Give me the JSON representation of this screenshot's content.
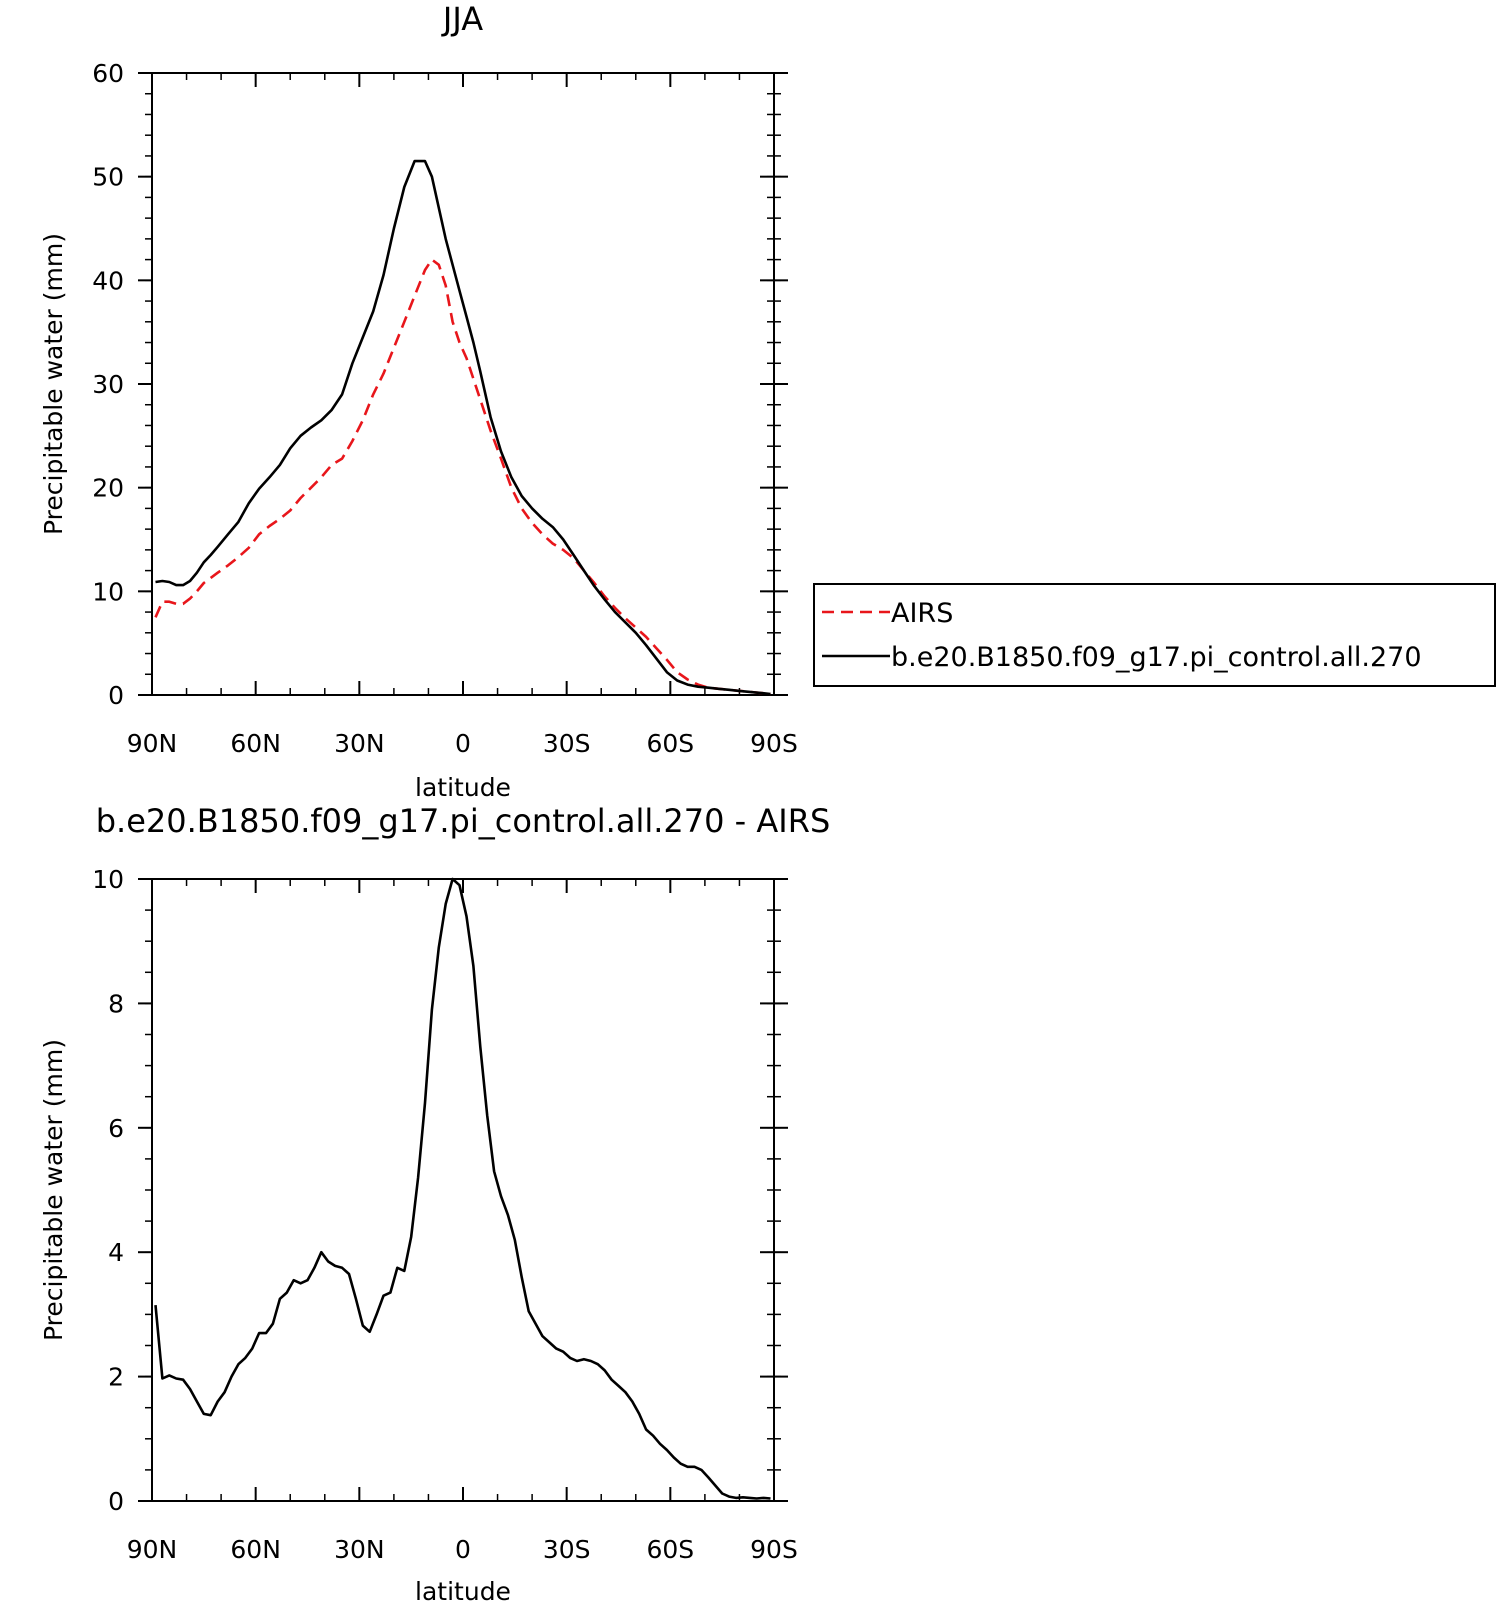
{
  "chart_data": [
    {
      "type": "line",
      "title": "JJA",
      "xlabel": "latitude",
      "ylabel": "Precipitable water (mm)",
      "xlim": [
        90,
        -90
      ],
      "ylim": [
        0,
        60
      ],
      "x_ticks": [
        90,
        60,
        30,
        0,
        -30,
        -60,
        -90
      ],
      "x_tick_labels": [
        "90N",
        "60N",
        "30N",
        "0",
        "30S",
        "60S",
        "90S"
      ],
      "y_ticks": [
        0,
        10,
        20,
        30,
        40,
        50,
        60
      ],
      "y_tick_labels": [
        "0",
        "10",
        "20",
        "30",
        "40",
        "50",
        "60"
      ],
      "grid": false,
      "legend_position": "right",
      "series": [
        {
          "name": "AIRS",
          "color": "#e8161b",
          "dash": "dashed",
          "x": [
            89,
            87,
            85,
            83,
            81,
            79,
            77,
            75,
            73,
            71,
            68,
            65,
            62,
            59,
            56,
            53,
            50,
            47,
            44,
            41,
            38,
            35,
            32,
            29,
            26,
            23,
            20,
            17,
            14,
            11,
            9,
            7,
            5,
            3,
            1,
            -1,
            -3,
            -5,
            -8,
            -11,
            -14,
            -17,
            -20,
            -23,
            -26,
            -29,
            -32,
            -35,
            -38,
            -41,
            -44,
            -47,
            -50,
            -53,
            -56,
            -59,
            -62,
            -65,
            -68,
            -71,
            -74,
            -77,
            -80,
            -83,
            -86,
            -89
          ],
          "y": [
            7.5,
            9.0,
            9.0,
            8.8,
            8.8,
            9.3,
            10.0,
            10.8,
            11.3,
            11.8,
            12.5,
            13.3,
            14.2,
            15.5,
            16.3,
            17.0,
            17.8,
            19.0,
            20.0,
            21.0,
            22.2,
            22.8,
            24.5,
            26.5,
            29.0,
            31.0,
            33.5,
            36.0,
            38.5,
            41.0,
            42.0,
            41.5,
            39.5,
            36.0,
            34.0,
            32.5,
            30.5,
            28.5,
            25.5,
            22.8,
            20.0,
            18.0,
            16.6,
            15.5,
            14.6,
            14.0,
            13.2,
            12.0,
            10.8,
            9.5,
            8.4,
            7.4,
            6.5,
            5.6,
            4.5,
            3.4,
            2.2,
            1.5,
            1.0,
            0.7,
            0.6,
            0.5,
            0.4,
            0.3,
            0.2,
            0.1
          ]
        },
        {
          "name": "b.e20.B1850.f09_g17.pi_control.all.270",
          "color": "#000000",
          "dash": "solid",
          "x": [
            89,
            87,
            85,
            83,
            81,
            79,
            77,
            75,
            73,
            71,
            68,
            65,
            62,
            59,
            56,
            53,
            50,
            47,
            44,
            41,
            38,
            35,
            32,
            29,
            26,
            23,
            20,
            17,
            14,
            11,
            9,
            7,
            5,
            3,
            1,
            -1,
            -3,
            -5,
            -8,
            -11,
            -14,
            -17,
            -20,
            -23,
            -26,
            -29,
            -32,
            -35,
            -38,
            -41,
            -44,
            -47,
            -50,
            -53,
            -56,
            -59,
            -62,
            -65,
            -68,
            -71,
            -74,
            -77,
            -80,
            -83,
            -86,
            -89
          ],
          "y": [
            10.9,
            11.0,
            10.9,
            10.6,
            10.6,
            11.0,
            11.8,
            12.8,
            13.5,
            14.3,
            15.5,
            16.7,
            18.5,
            19.9,
            21.0,
            22.2,
            23.8,
            25.0,
            25.8,
            26.5,
            27.5,
            29.0,
            32.0,
            34.5,
            37.0,
            40.5,
            45.0,
            49.0,
            51.5,
            51.5,
            50.0,
            47.0,
            44.0,
            41.5,
            39.0,
            36.5,
            34.0,
            31.2,
            26.8,
            23.5,
            21.0,
            19.2,
            18.0,
            17.0,
            16.2,
            15.0,
            13.5,
            12.0,
            10.5,
            9.2,
            8.0,
            7.0,
            6.0,
            4.8,
            3.5,
            2.2,
            1.4,
            1.0,
            0.8,
            0.7,
            0.6,
            0.5,
            0.4,
            0.3,
            0.2,
            0.1
          ]
        }
      ]
    },
    {
      "type": "line",
      "title": "b.e20.B1850.f09_g17.pi_control.all.270 - AIRS",
      "xlabel": "latitude",
      "ylabel": "Precipitable water (mm)",
      "xlim": [
        90,
        -90
      ],
      "ylim": [
        0,
        10
      ],
      "x_ticks": [
        90,
        60,
        30,
        0,
        -30,
        -60,
        -90
      ],
      "x_tick_labels": [
        "90N",
        "60N",
        "30N",
        "0",
        "30S",
        "60S",
        "90S"
      ],
      "y_ticks": [
        0,
        2,
        4,
        6,
        8,
        10
      ],
      "y_tick_labels": [
        "0",
        "2",
        "4",
        "6",
        "8",
        "10"
      ],
      "grid": false,
      "series": [
        {
          "color": "#000000",
          "dash": "solid",
          "x": [
            89,
            87,
            85,
            83,
            81,
            79,
            77,
            75,
            73,
            71,
            69,
            67,
            65,
            63,
            61,
            59,
            57,
            55,
            53,
            51,
            49,
            47,
            45,
            43,
            41,
            39,
            37,
            35,
            33,
            31,
            29,
            27,
            25,
            23,
            21,
            19,
            17,
            15,
            13,
            11,
            9,
            7,
            5,
            3,
            1,
            -1,
            -3,
            -5,
            -7,
            -9,
            -11,
            -13,
            -15,
            -17,
            -19,
            -21,
            -23,
            -25,
            -27,
            -29,
            -31,
            -33,
            -35,
            -37,
            -39,
            -41,
            -43,
            -45,
            -47,
            -49,
            -51,
            -53,
            -55,
            -57,
            -59,
            -61,
            -63,
            -65,
            -67,
            -69,
            -71,
            -73,
            -75,
            -77,
            -79,
            -81,
            -83,
            -85,
            -87,
            -89
          ],
          "y": [
            3.15,
            1.97,
            2.02,
            1.97,
            1.95,
            1.8,
            1.6,
            1.4,
            1.38,
            1.6,
            1.75,
            2.0,
            2.2,
            2.3,
            2.45,
            2.7,
            2.7,
            2.85,
            3.25,
            3.35,
            3.55,
            3.5,
            3.55,
            3.75,
            4.0,
            3.85,
            3.78,
            3.75,
            3.65,
            3.25,
            2.82,
            2.72,
            3.0,
            3.3,
            3.35,
            3.75,
            3.7,
            4.25,
            5.2,
            6.4,
            7.9,
            8.9,
            9.6,
            10.0,
            9.9,
            9.4,
            8.6,
            7.3,
            6.2,
            5.3,
            4.9,
            4.6,
            4.2,
            3.6,
            3.05,
            2.85,
            2.65,
            2.55,
            2.45,
            2.4,
            2.3,
            2.25,
            2.28,
            2.25,
            2.2,
            2.1,
            1.95,
            1.85,
            1.75,
            1.6,
            1.4,
            1.15,
            1.05,
            0.92,
            0.82,
            0.7,
            0.6,
            0.55,
            0.55,
            0.5,
            0.38,
            0.25,
            0.12,
            0.07,
            0.05,
            0.06,
            0.05,
            0.04,
            0.05,
            0.04
          ]
        }
      ]
    }
  ]
}
